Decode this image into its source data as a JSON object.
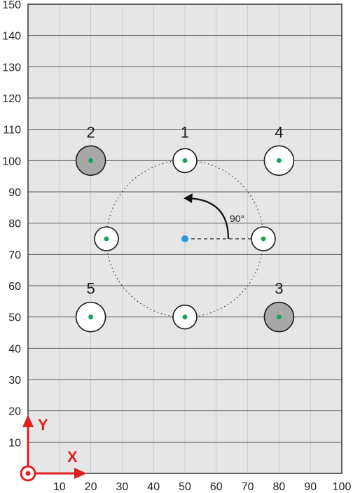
{
  "chart_data": {
    "type": "scatter",
    "xlim": [
      0,
      100
    ],
    "ylim": [
      0,
      150
    ],
    "x_ticks": [
      "10",
      "20",
      "30",
      "40",
      "50",
      "60",
      "70",
      "80",
      "90",
      "100"
    ],
    "y_ticks": [
      "10",
      "20",
      "30",
      "40",
      "50",
      "60",
      "70",
      "80",
      "90",
      "100",
      "110",
      "120",
      "130",
      "140",
      "150"
    ],
    "grid": true,
    "pattern_center": {
      "x": 50,
      "y": 75
    },
    "pattern_radius": 25,
    "rotation_angle_label": "90°",
    "holes": [
      {
        "x": 50,
        "y": 100,
        "label": "1",
        "filled": false,
        "size": "small"
      },
      {
        "x": 20,
        "y": 100,
        "label": "2",
        "filled": true,
        "size": "large"
      },
      {
        "x": 80,
        "y": 50,
        "label": "3",
        "filled": true,
        "size": "large"
      },
      {
        "x": 80,
        "y": 100,
        "label": "4",
        "filled": false,
        "size": "large"
      },
      {
        "x": 20,
        "y": 50,
        "label": "5",
        "filled": false,
        "size": "large"
      },
      {
        "x": 25,
        "y": 75,
        "label": "",
        "filled": false,
        "size": "small"
      },
      {
        "x": 75,
        "y": 75,
        "label": "",
        "filled": false,
        "size": "small"
      },
      {
        "x": 50,
        "y": 50,
        "label": "",
        "filled": false,
        "size": "small"
      }
    ],
    "axis_labels": {
      "x": "X",
      "y": "Y"
    }
  },
  "colors": {
    "background": "#e6e6e6",
    "grid": "#9a9a9a",
    "frame": "#333333",
    "hole_fill_open": "#ffffff",
    "hole_fill_filled": "#a8a8a8",
    "hole_center": "#1aa05a",
    "pattern_center": "#2a9ad8",
    "axis_arrow": "#e02020"
  }
}
